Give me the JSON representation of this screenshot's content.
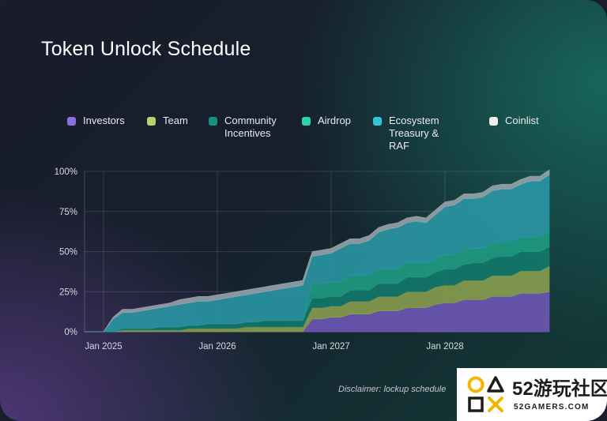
{
  "title": "Token Unlock Schedule",
  "legend": [
    {
      "label": "Investors",
      "color": "#8a6fe0"
    },
    {
      "label": "Team",
      "color": "#b4d36f"
    },
    {
      "label": "Community\nIncentives",
      "color": "#16917f"
    },
    {
      "label": "Airdrop",
      "color": "#2ad6a8"
    },
    {
      "label": "Ecosystem\nTreasury & RAF",
      "color": "#33c6d4"
    },
    {
      "label": "Coinlist",
      "color": "#eeeeee"
    }
  ],
  "chart_data": {
    "type": "area",
    "stacked": true,
    "x_tick_labels": [
      "Jan 2025",
      "Jan 2026",
      "Jan 2027",
      "Jan 2028"
    ],
    "y_tick_labels": [
      "100%",
      "75%",
      "50%",
      "25%",
      "0%"
    ],
    "ylim": [
      0,
      100
    ],
    "grid": true,
    "x": [
      "2024-11",
      "2024-12",
      "2025-01",
      "2025-02",
      "2025-03",
      "2025-04",
      "2025-05",
      "2025-06",
      "2025-07",
      "2025-08",
      "2025-09",
      "2025-10",
      "2025-11",
      "2025-12",
      "2026-01",
      "2026-02",
      "2026-03",
      "2026-04",
      "2026-05",
      "2026-06",
      "2026-07",
      "2026-08",
      "2026-09",
      "2026-10",
      "2026-11",
      "2026-12",
      "2027-01",
      "2027-02",
      "2027-03",
      "2027-04",
      "2027-05",
      "2027-06",
      "2027-07",
      "2027-08",
      "2027-09",
      "2027-10",
      "2027-11",
      "2027-12",
      "2028-01",
      "2028-02",
      "2028-03",
      "2028-04",
      "2028-05",
      "2028-06",
      "2028-07",
      "2028-08",
      "2028-09",
      "2028-10",
      "2028-11",
      "2028-12"
    ],
    "series": [
      {
        "name": "Investors",
        "color": "#6f58b8",
        "values": [
          0,
          0,
          0,
          0,
          0,
          0,
          0,
          0,
          0,
          0,
          0,
          0,
          0,
          0,
          0,
          0,
          0,
          0,
          0,
          0,
          0,
          0,
          0,
          0,
          8,
          8,
          9,
          9,
          11,
          11,
          11,
          13,
          13,
          13,
          15,
          15,
          15,
          17,
          18,
          18,
          20,
          20,
          20,
          22,
          22,
          22,
          24,
          24,
          24,
          25
        ]
      },
      {
        "name": "Team",
        "color": "#8ba150",
        "values": [
          0,
          0,
          0,
          0,
          1,
          1,
          1,
          1,
          1,
          1,
          1,
          2,
          2,
          2,
          2,
          2,
          2,
          3,
          3,
          3,
          3,
          3,
          3,
          3,
          7,
          7,
          7,
          7,
          8,
          8,
          8,
          9,
          9,
          9,
          10,
          10,
          10,
          11,
          11,
          11,
          12,
          12,
          12,
          13,
          13,
          13,
          14,
          14,
          14,
          16
        ]
      },
      {
        "name": "Community Incentives",
        "color": "#137a6c",
        "values": [
          0,
          0,
          0,
          0,
          1,
          1,
          1,
          1,
          2,
          2,
          2,
          2,
          2,
          3,
          3,
          3,
          3,
          3,
          3,
          4,
          4,
          4,
          4,
          4,
          6,
          6,
          6,
          6,
          7,
          7,
          7,
          8,
          8,
          8,
          9,
          9,
          9,
          9,
          10,
          10,
          10,
          11,
          11,
          11,
          12,
          12,
          12,
          12,
          12,
          12
        ]
      },
      {
        "name": "Airdrop",
        "color": "#1f9e84",
        "values": [
          0,
          0,
          0,
          0,
          0,
          0,
          0,
          0,
          0,
          0,
          0,
          0,
          0,
          0,
          0,
          0,
          0,
          0,
          0,
          0,
          0,
          0,
          0,
          0,
          9,
          9,
          9,
          9,
          9,
          9,
          9,
          9,
          9,
          9,
          9,
          9,
          9,
          9,
          9,
          9,
          9,
          9,
          9,
          9,
          9,
          9,
          9,
          9,
          9,
          9
        ]
      },
      {
        "name": "Ecosystem Treasury & RAF",
        "color": "#2a98a6",
        "values": [
          0,
          0,
          0,
          8,
          10,
          10,
          11,
          12,
          12,
          13,
          14,
          14,
          15,
          14,
          15,
          16,
          17,
          17,
          18,
          18,
          19,
          20,
          21,
          22,
          17,
          18,
          18,
          21,
          20,
          20,
          22,
          23,
          25,
          26,
          25,
          26,
          25,
          27,
          30,
          31,
          32,
          31,
          32,
          33,
          33,
          33,
          33,
          35,
          35,
          36
        ]
      },
      {
        "name": "Coinlist",
        "color": "#9aa6ae",
        "values": [
          0,
          0,
          0,
          1,
          2,
          2,
          2,
          2,
          2,
          2,
          3,
          3,
          3,
          3,
          3,
          3,
          3,
          3,
          3,
          3,
          3,
          3,
          3,
          3,
          3,
          3,
          3,
          3,
          3,
          3,
          3,
          3,
          3,
          3,
          3,
          3,
          3,
          3,
          3,
          3,
          3,
          3,
          3,
          3,
          3,
          3,
          3,
          3,
          3,
          3
        ]
      }
    ]
  },
  "disclaimer": "Disclaimer: lockup schedule",
  "watermark": {
    "top": "52游玩社区",
    "bottom": "52GAMERS.COM"
  }
}
